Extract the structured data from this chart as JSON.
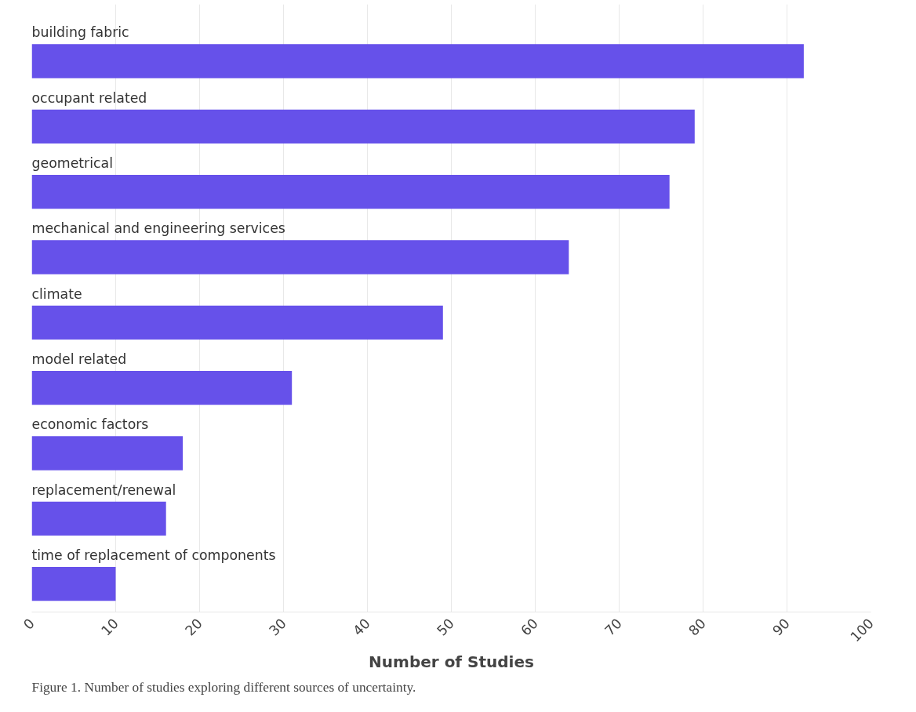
{
  "chart_data": {
    "type": "bar",
    "orientation": "horizontal",
    "categories": [
      "building fabric",
      "occupant related",
      "geometrical",
      "mechanical and engineering services",
      "climate",
      "model related",
      "economic factors",
      "replacement/renewal",
      "time of replacement of components"
    ],
    "values": [
      92,
      79,
      76,
      64,
      49,
      31,
      18,
      16,
      10
    ],
    "color": "#6651ea",
    "xlabel": "Number of Studies",
    "xlim": [
      0,
      100
    ],
    "xticks": [
      0,
      10,
      20,
      30,
      40,
      50,
      60,
      70,
      80,
      90,
      100
    ],
    "grid": "x",
    "annotations": [
      "Figure 1. Number of studies exploring different sources of uncertainty."
    ]
  }
}
